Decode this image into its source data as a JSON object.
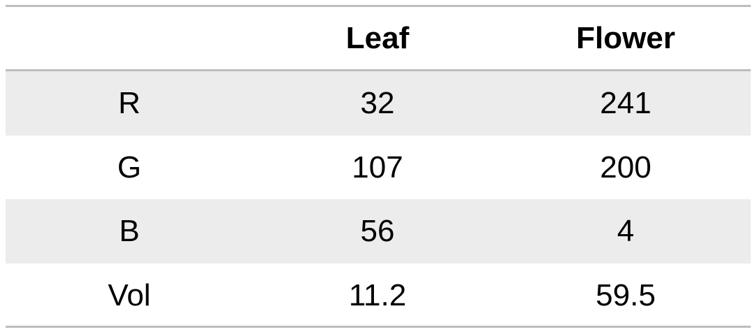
{
  "table": {
    "columns": [
      "Leaf",
      "Flower"
    ],
    "rows": [
      [
        "R",
        "32",
        "241"
      ],
      [
        "G",
        "107",
        "200"
      ],
      [
        "B",
        "56",
        "4"
      ],
      [
        "Vol",
        "11.2",
        "59.5"
      ]
    ]
  }
}
